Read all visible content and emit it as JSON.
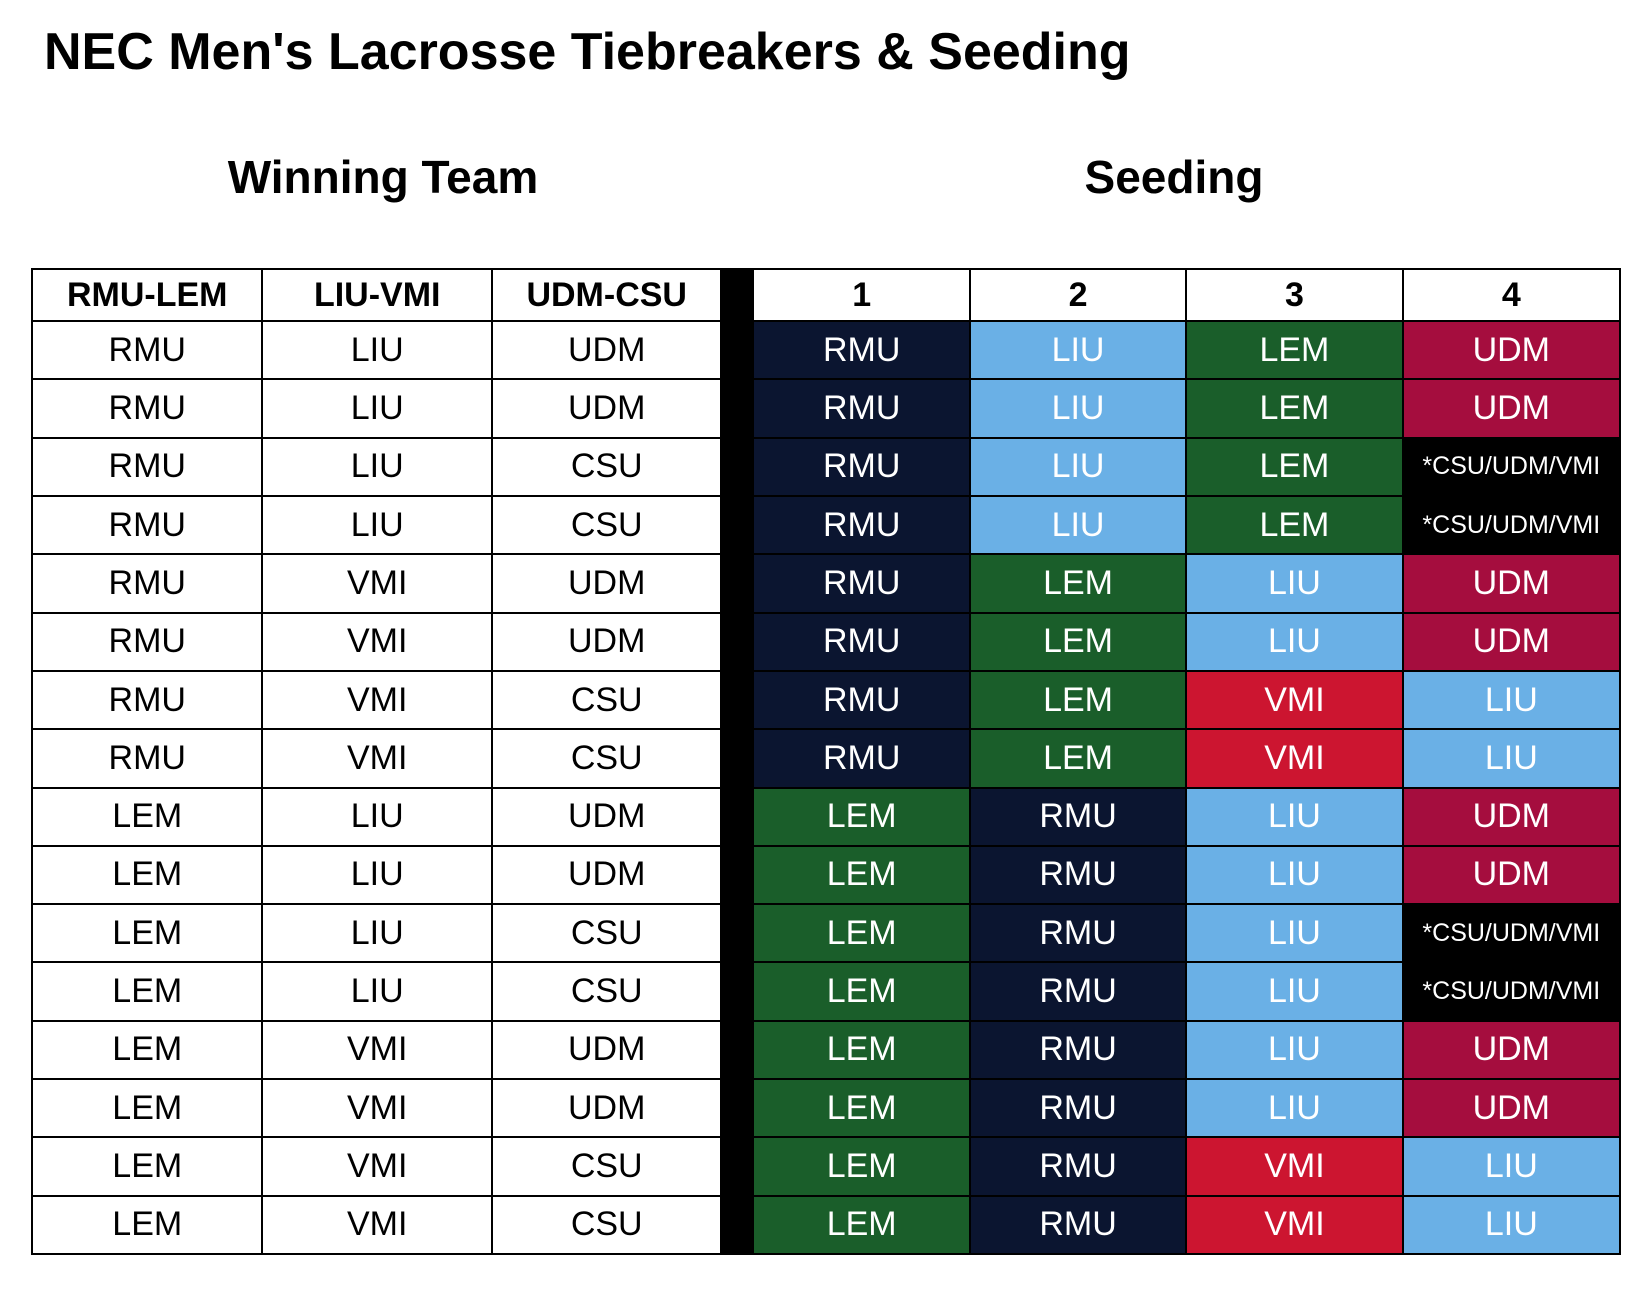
{
  "title": "NEC Men's Lacrosse Tiebreakers & Seeding",
  "sections": {
    "winning": "Winning Team",
    "seeding": "Seeding"
  },
  "colors": {
    "RMU": "#0b1530",
    "LIU": "#6ab0e6",
    "LEM": "#1a5e2a",
    "UDM": "#a50d3e",
    "VMI": "#cc1530",
    "TIE": "#000000"
  },
  "winning_headers": [
    "RMU-LEM",
    "LIU-VMI",
    "UDM-CSU"
  ],
  "seeding_headers": [
    "1",
    "2",
    "3",
    "4"
  ],
  "rows": [
    {
      "win": [
        "RMU",
        "LIU",
        "UDM"
      ],
      "seed": [
        "RMU",
        "LIU",
        "LEM",
        "UDM"
      ]
    },
    {
      "win": [
        "RMU",
        "LIU",
        "UDM"
      ],
      "seed": [
        "RMU",
        "LIU",
        "LEM",
        "UDM"
      ]
    },
    {
      "win": [
        "RMU",
        "LIU",
        "CSU"
      ],
      "seed": [
        "RMU",
        "LIU",
        "LEM",
        "*CSU/UDM/VMI"
      ]
    },
    {
      "win": [
        "RMU",
        "LIU",
        "CSU"
      ],
      "seed": [
        "RMU",
        "LIU",
        "LEM",
        "*CSU/UDM/VMI"
      ]
    },
    {
      "win": [
        "RMU",
        "VMI",
        "UDM"
      ],
      "seed": [
        "RMU",
        "LEM",
        "LIU",
        "UDM"
      ]
    },
    {
      "win": [
        "RMU",
        "VMI",
        "UDM"
      ],
      "seed": [
        "RMU",
        "LEM",
        "LIU",
        "UDM"
      ]
    },
    {
      "win": [
        "RMU",
        "VMI",
        "CSU"
      ],
      "seed": [
        "RMU",
        "LEM",
        "VMI",
        "LIU"
      ]
    },
    {
      "win": [
        "RMU",
        "VMI",
        "CSU"
      ],
      "seed": [
        "RMU",
        "LEM",
        "VMI",
        "LIU"
      ]
    },
    {
      "win": [
        "LEM",
        "LIU",
        "UDM"
      ],
      "seed": [
        "LEM",
        "RMU",
        "LIU",
        "UDM"
      ]
    },
    {
      "win": [
        "LEM",
        "LIU",
        "UDM"
      ],
      "seed": [
        "LEM",
        "RMU",
        "LIU",
        "UDM"
      ]
    },
    {
      "win": [
        "LEM",
        "LIU",
        "CSU"
      ],
      "seed": [
        "LEM",
        "RMU",
        "LIU",
        "*CSU/UDM/VMI"
      ]
    },
    {
      "win": [
        "LEM",
        "LIU",
        "CSU"
      ],
      "seed": [
        "LEM",
        "RMU",
        "LIU",
        "*CSU/UDM/VMI"
      ]
    },
    {
      "win": [
        "LEM",
        "VMI",
        "UDM"
      ],
      "seed": [
        "LEM",
        "RMU",
        "LIU",
        "UDM"
      ]
    },
    {
      "win": [
        "LEM",
        "VMI",
        "UDM"
      ],
      "seed": [
        "LEM",
        "RMU",
        "LIU",
        "UDM"
      ]
    },
    {
      "win": [
        "LEM",
        "VMI",
        "CSU"
      ],
      "seed": [
        "LEM",
        "RMU",
        "VMI",
        "LIU"
      ]
    },
    {
      "win": [
        "LEM",
        "VMI",
        "CSU"
      ],
      "seed": [
        "LEM",
        "RMU",
        "VMI",
        "LIU"
      ]
    }
  ]
}
